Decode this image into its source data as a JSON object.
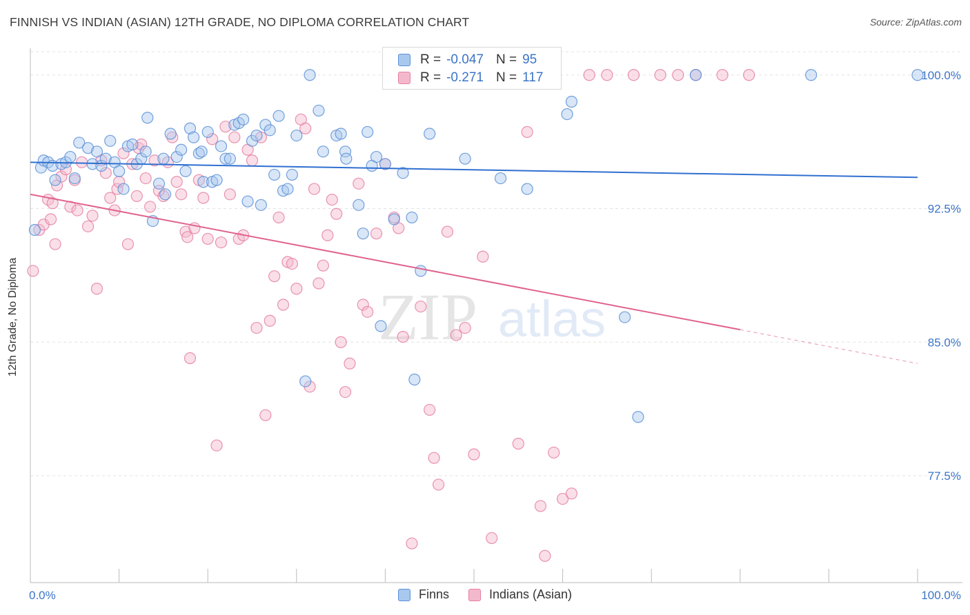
{
  "header": {
    "title": "FINNISH VS INDIAN (ASIAN) 12TH GRADE, NO DIPLOMA CORRELATION CHART",
    "source": "Source: ZipAtlas.com"
  },
  "watermark": {
    "zip": "ZIP",
    "atlas": "atlas"
  },
  "colors": {
    "finns_fill": "#a9c8ee",
    "finns_stroke": "#5b8fd6",
    "finns_line": "#2f6fd0",
    "indians_fill": "#f4b8cc",
    "indians_stroke": "#e57fa2",
    "indians_line": "#e0628f",
    "tick_text": "#3b74c8"
  },
  "legend": {
    "rows": [
      {
        "r_label": "R =",
        "r_value": "-0.047",
        "n_label": "N =",
        "n_value": "95"
      },
      {
        "r_label": "R =",
        "r_value": "-0.271",
        "n_label": "N =",
        "n_value": "117"
      }
    ]
  },
  "bottom_legend": {
    "finns": "Finns",
    "indians": "Indians (Asian)"
  },
  "chart_data": {
    "type": "scatter",
    "title": "FINNISH VS INDIAN (ASIAN) 12TH GRADE, NO DIPLOMA CORRELATION CHART",
    "xlabel": "",
    "ylabel": "12th Grade, No Diploma",
    "xlim": [
      0,
      100
    ],
    "ylim": [
      71.5,
      101.5
    ],
    "x_tick_labels": [
      "0.0%",
      "100.0%"
    ],
    "y_ticks": [
      77.5,
      85.0,
      92.5,
      100.0
    ],
    "y_tick_labels": [
      "77.5%",
      "85.0%",
      "92.5%",
      "100.0%"
    ],
    "grid": true,
    "legend_position": "top-center",
    "series": [
      {
        "name": "Finns",
        "trend": {
          "x0": 0,
          "y0": 95.1,
          "x1": 100,
          "y1": 94.25
        },
        "points": [
          [
            0.5,
            91.3
          ],
          [
            1.2,
            94.8
          ],
          [
            1.5,
            95.2
          ],
          [
            2,
            95.1
          ],
          [
            2.5,
            94.9
          ],
          [
            2.8,
            94.1
          ],
          [
            3.5,
            95
          ],
          [
            4,
            95.1
          ],
          [
            4.5,
            95.4
          ],
          [
            5,
            94.2
          ],
          [
            5.5,
            96.2
          ],
          [
            6.5,
            95.9
          ],
          [
            7,
            95
          ],
          [
            7.5,
            95.7
          ],
          [
            8,
            94.9
          ],
          [
            8.5,
            95.3
          ],
          [
            9,
            96.3
          ],
          [
            9.5,
            95.1
          ],
          [
            10,
            94.6
          ],
          [
            10.5,
            93.6
          ],
          [
            11,
            96
          ],
          [
            11.5,
            96.1
          ],
          [
            12,
            95
          ],
          [
            12.5,
            95.3
          ],
          [
            13,
            95.7
          ],
          [
            13.2,
            97.6
          ],
          [
            13.8,
            91.8
          ],
          [
            14.5,
            93.9
          ],
          [
            15,
            95.3
          ],
          [
            15.2,
            93.3
          ],
          [
            15.8,
            96.7
          ],
          [
            16.5,
            95.4
          ],
          [
            17,
            95.8
          ],
          [
            17.5,
            94.6
          ],
          [
            18,
            97
          ],
          [
            18.4,
            96.5
          ],
          [
            19,
            95.6
          ],
          [
            19.3,
            95.7
          ],
          [
            19.5,
            94
          ],
          [
            20,
            96.8
          ],
          [
            20.5,
            94
          ],
          [
            21,
            94.1
          ],
          [
            21.5,
            96
          ],
          [
            22,
            95.3
          ],
          [
            22.5,
            95.3
          ],
          [
            23,
            97.2
          ],
          [
            23.5,
            97.3
          ],
          [
            24,
            97.5
          ],
          [
            24.5,
            92.9
          ],
          [
            25,
            96.3
          ],
          [
            25.5,
            96.6
          ],
          [
            26,
            92.7
          ],
          [
            26.5,
            97.2
          ],
          [
            27,
            96.9
          ],
          [
            27.5,
            94.4
          ],
          [
            28,
            97.7
          ],
          [
            28.5,
            93.5
          ],
          [
            29,
            93.6
          ],
          [
            29.5,
            94.4
          ],
          [
            30,
            96.6
          ],
          [
            31,
            82.8
          ],
          [
            32.5,
            98
          ],
          [
            33,
            95.7
          ],
          [
            34.5,
            96.6
          ],
          [
            35,
            96.7
          ],
          [
            35.5,
            95.7
          ],
          [
            35.6,
            95.3
          ],
          [
            37,
            92.7
          ],
          [
            37.5,
            91.1
          ],
          [
            38,
            96.8
          ],
          [
            38.5,
            94.9
          ],
          [
            39,
            95.4
          ],
          [
            39.5,
            85.9
          ],
          [
            40,
            95
          ],
          [
            41,
            91.9
          ],
          [
            42,
            94.5
          ],
          [
            43,
            92
          ],
          [
            43.3,
            82.9
          ],
          [
            44,
            89
          ],
          [
            45,
            96.7
          ],
          [
            49,
            95.3
          ],
          [
            53,
            94.2
          ],
          [
            56,
            93.6
          ],
          [
            60.5,
            97.8
          ],
          [
            61,
            98.5
          ],
          [
            67,
            86.4
          ],
          [
            68.5,
            80.8
          ],
          [
            75,
            100
          ],
          [
            88,
            100
          ],
          [
            101,
            100
          ],
          [
            31.5,
            100
          ]
        ]
      },
      {
        "name": "Indians (Asian)",
        "trend": {
          "x0": 0,
          "y0": 93.3,
          "x1": 80,
          "y1": 85.7
        },
        "points": [
          [
            0.3,
            89
          ],
          [
            1,
            91.3
          ],
          [
            1.5,
            91.6
          ],
          [
            2,
            93
          ],
          [
            2.3,
            91.9
          ],
          [
            2.5,
            92.8
          ],
          [
            2.8,
            90.5
          ],
          [
            3,
            93.8
          ],
          [
            3.5,
            94.3
          ],
          [
            4,
            94.7
          ],
          [
            4.5,
            92.6
          ],
          [
            5,
            94.1
          ],
          [
            5.3,
            92.4
          ],
          [
            5.8,
            95.1
          ],
          [
            6.5,
            91.5
          ],
          [
            7,
            92.1
          ],
          [
            7.5,
            88
          ],
          [
            8,
            95.2
          ],
          [
            8.5,
            94.5
          ],
          [
            9,
            93.1
          ],
          [
            9.5,
            92.4
          ],
          [
            9.8,
            93.6
          ],
          [
            10,
            94
          ],
          [
            10.5,
            95.6
          ],
          [
            11,
            90.5
          ],
          [
            11.5,
            95
          ],
          [
            12,
            93.2
          ],
          [
            12.2,
            95.9
          ],
          [
            12.5,
            96.1
          ],
          [
            13,
            94.2
          ],
          [
            13.5,
            92.6
          ],
          [
            14,
            95.2
          ],
          [
            14.5,
            93.5
          ],
          [
            15,
            93.2
          ],
          [
            15.5,
            95.1
          ],
          [
            16,
            96.5
          ],
          [
            16.5,
            94
          ],
          [
            17,
            93.3
          ],
          [
            17.5,
            91.2
          ],
          [
            17.7,
            90.9
          ],
          [
            18,
            84.1
          ],
          [
            18.5,
            91.4
          ],
          [
            19,
            94.1
          ],
          [
            19.5,
            93.1
          ],
          [
            20,
            90.8
          ],
          [
            20.5,
            96.4
          ],
          [
            21,
            79.2
          ],
          [
            21.5,
            90.6
          ],
          [
            22,
            97.1
          ],
          [
            22.5,
            93.3
          ],
          [
            23,
            96.5
          ],
          [
            23.5,
            90.8
          ],
          [
            24,
            91
          ],
          [
            24.5,
            95.8
          ],
          [
            25,
            95.2
          ],
          [
            25.5,
            85.8
          ],
          [
            26,
            96.5
          ],
          [
            26.5,
            80.9
          ],
          [
            27,
            86.2
          ],
          [
            27.5,
            88.7
          ],
          [
            28,
            92
          ],
          [
            28.5,
            87.1
          ],
          [
            29,
            89.5
          ],
          [
            29.5,
            89.4
          ],
          [
            30,
            88
          ],
          [
            30.5,
            97.5
          ],
          [
            31,
            97
          ],
          [
            31.5,
            82.5
          ],
          [
            32,
            93.6
          ],
          [
            32.5,
            88.3
          ],
          [
            33,
            89.3
          ],
          [
            33.5,
            91
          ],
          [
            34,
            93
          ],
          [
            34.5,
            92.2
          ],
          [
            35,
            85
          ],
          [
            35.5,
            82.2
          ],
          [
            36,
            83.8
          ],
          [
            37,
            93.9
          ],
          [
            37.5,
            87.1
          ],
          [
            38,
            86.7
          ],
          [
            39,
            91.1
          ],
          [
            40,
            95
          ],
          [
            41,
            92
          ],
          [
            41.5,
            91.4
          ],
          [
            42,
            85.3
          ],
          [
            43,
            73.7
          ],
          [
            44,
            87
          ],
          [
            45,
            81.2
          ],
          [
            45.5,
            78.5
          ],
          [
            46,
            77
          ],
          [
            47,
            91.2
          ],
          [
            48,
            85.4
          ],
          [
            49,
            85.8
          ],
          [
            50,
            78.7
          ],
          [
            51,
            89.8
          ],
          [
            52,
            74
          ],
          [
            55,
            79.3
          ],
          [
            56,
            96.8
          ],
          [
            57.5,
            75.8
          ],
          [
            58,
            73
          ],
          [
            59,
            78.8
          ],
          [
            60,
            76.2
          ],
          [
            61,
            76.5
          ],
          [
            63,
            100
          ],
          [
            65,
            100
          ],
          [
            68,
            100
          ],
          [
            71,
            100
          ],
          [
            73,
            100
          ],
          [
            75,
            100
          ],
          [
            78,
            100
          ],
          [
            81,
            100
          ]
        ]
      }
    ]
  }
}
